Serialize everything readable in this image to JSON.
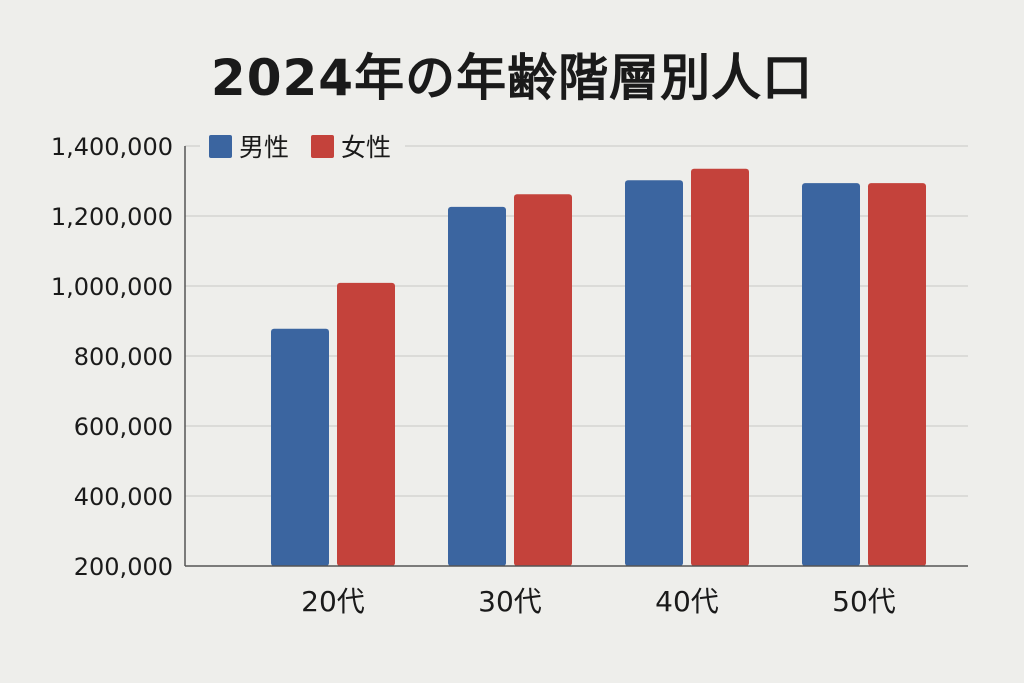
{
  "chart_data": {
    "type": "bar",
    "title": "2024年の年齢階層別人口",
    "categories": [
      "20代",
      "30代",
      "40代",
      "50代"
    ],
    "series": [
      {
        "name": "男性",
        "color": "#3b65a0",
        "values": [
          878000,
          1226000,
          1302000,
          1294000
        ]
      },
      {
        "name": "女性",
        "color": "#c4423b",
        "values": [
          1009000,
          1262000,
          1335000,
          1294000
        ]
      }
    ],
    "ylim": [
      200000,
      1400000
    ],
    "yticks": [
      "200,000",
      "400,000",
      "600,000",
      "800,000",
      "1,000,000",
      "1,200,000",
      "1,400,000"
    ],
    "grid": true,
    "legend_position": "top-left"
  }
}
